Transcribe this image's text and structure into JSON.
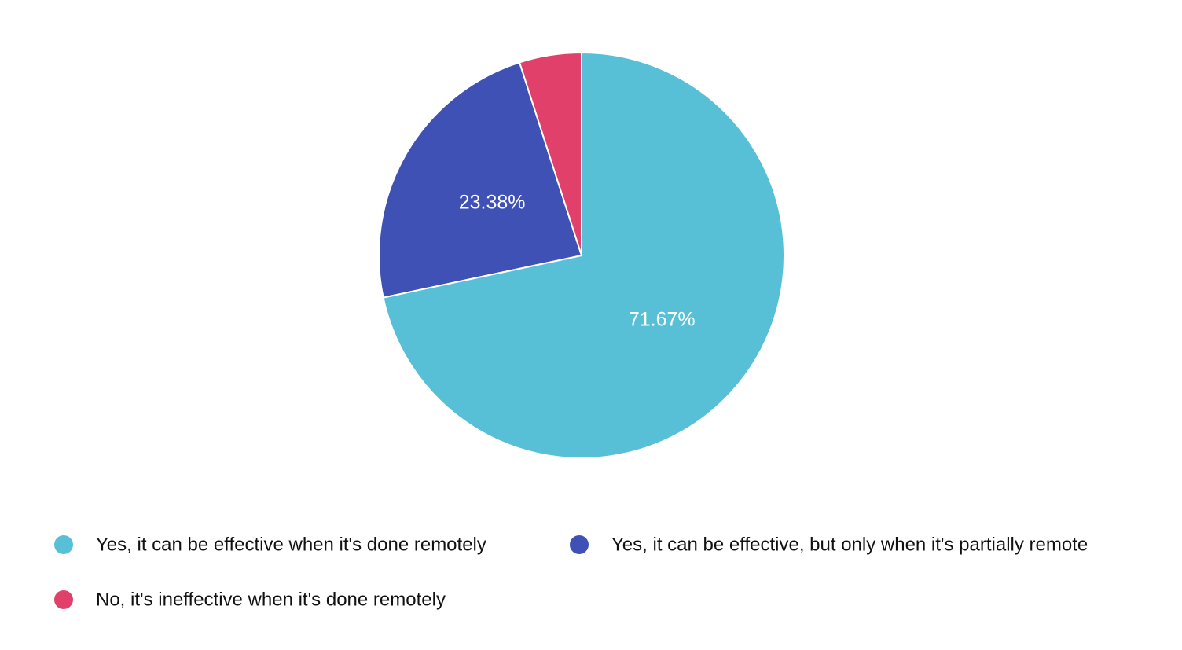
{
  "chart_data": {
    "type": "pie",
    "categories": [
      "Yes, it can be effective when it's done remotely",
      "Yes, it can be effective, but only when it's partially remote",
      "No, it's ineffective when it's done remotely"
    ],
    "values": [
      71.67,
      23.38,
      4.95
    ],
    "value_labels": [
      "71.67%",
      "23.38%",
      null
    ],
    "colors": [
      "#57c0d6",
      "#3f51b5",
      "#e0406a"
    ],
    "legend": "bottom"
  }
}
